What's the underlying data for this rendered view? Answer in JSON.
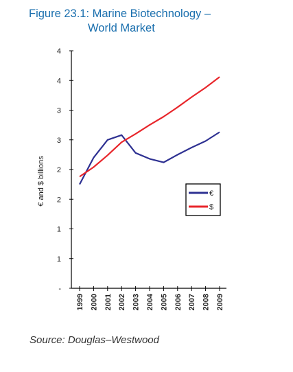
{
  "title": {
    "line1": "Figure 23.1: Marine Biotechnology –",
    "line2": "World Market"
  },
  "source": "Source:  Douglas–Westwood",
  "chart_data": {
    "type": "line",
    "x": [
      "1999",
      "2000",
      "2001",
      "2002",
      "2003",
      "2004",
      "2005",
      "2006",
      "2007",
      "2008",
      "2009"
    ],
    "series": [
      {
        "name": "€",
        "color": "#2e3192",
        "values": [
          1.75,
          2.2,
          2.5,
          2.58,
          2.28,
          2.18,
          2.12,
          2.25,
          2.37,
          2.48,
          2.63
        ]
      },
      {
        "name": "$",
        "color": "#e8262b",
        "values": [
          1.88,
          2.04,
          2.24,
          2.46,
          2.6,
          2.75,
          2.89,
          3.05,
          3.22,
          3.38,
          3.56
        ]
      }
    ],
    "ylabel": "€ and $ billions",
    "ytick_labels": [
      "-",
      "1",
      "1",
      "2",
      "2",
      "3",
      "3",
      "4",
      "4"
    ],
    "ylim": [
      0,
      4
    ],
    "legend": "right"
  }
}
